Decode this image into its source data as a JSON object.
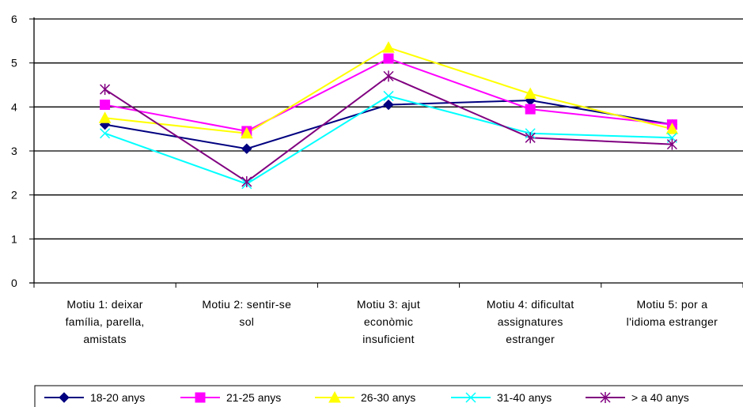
{
  "chart_data": {
    "type": "line",
    "ylim": [
      0,
      6
    ],
    "yticks": [
      "0",
      "1",
      "2",
      "3",
      "4",
      "5",
      "6"
    ],
    "grid": true,
    "legend_position": "bottom",
    "categories": [
      [
        "Motiu 1: deixar",
        "família, parella,",
        "amistats"
      ],
      [
        "Motiu 2: sentir-se",
        "sol"
      ],
      [
        "Motiu 3: ajut",
        "econòmic",
        "insuficient"
      ],
      [
        "Motiu 4: dificultat",
        "assignatures",
        "estranger"
      ],
      [
        "Motiu 5: por a",
        "l'idioma estranger"
      ]
    ],
    "series": [
      {
        "name": "18-20 anys",
        "color": "#000080",
        "marker": "diamond",
        "values": [
          3.6,
          3.05,
          4.05,
          4.15,
          3.6
        ]
      },
      {
        "name": "21-25 anys",
        "color": "#ff00ff",
        "marker": "square",
        "values": [
          4.05,
          3.45,
          5.1,
          3.95,
          3.6
        ]
      },
      {
        "name": "26-30 anys",
        "color": "#ffff00",
        "marker": "triangle",
        "values": [
          3.75,
          3.4,
          5.35,
          4.3,
          3.5
        ]
      },
      {
        "name": "31-40 anys",
        "color": "#00ffff",
        "marker": "x",
        "values": [
          3.4,
          2.25,
          4.25,
          3.4,
          3.3
        ]
      },
      {
        "name": "> a 40 anys",
        "color": "#800080",
        "marker": "asterisk",
        "values": [
          4.4,
          2.3,
          4.7,
          3.3,
          3.15
        ]
      }
    ]
  }
}
